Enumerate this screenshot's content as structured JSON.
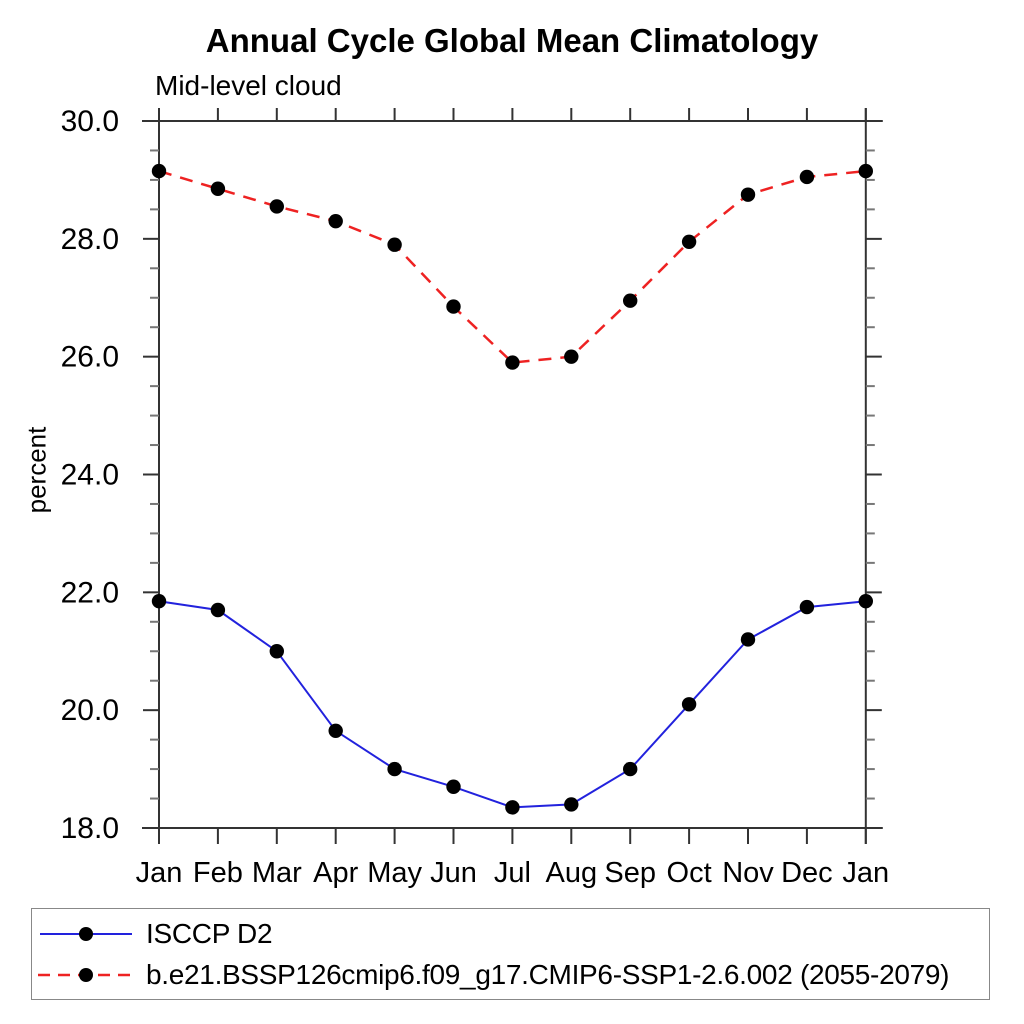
{
  "title": "Annual Cycle Global Mean Climatology",
  "subtitle": "Mid-level cloud",
  "chart_data": {
    "type": "line",
    "title": "Annual Cycle Global Mean Climatology",
    "subtitle": "Mid-level cloud",
    "ylabel": "percent",
    "categories": [
      "Jan",
      "Feb",
      "Mar",
      "Apr",
      "May",
      "Jun",
      "Jul",
      "Aug",
      "Sep",
      "Oct",
      "Nov",
      "Dec",
      "Jan"
    ],
    "ylim": [
      18.0,
      30.0
    ],
    "ytick_major_step": 2.0,
    "ytick_minor_step": 0.5,
    "ytick_label_format": "one-decimal",
    "grid": false,
    "legend_position": "bottom-left",
    "marker_color": "#000000",
    "axis_color": "#333333",
    "series": [
      {
        "name": "ISCCP D2",
        "color": "#2222dd",
        "line_style": "solid",
        "marker": "filled-circle",
        "values": [
          21.85,
          21.7,
          21.0,
          19.65,
          19.0,
          18.7,
          18.35,
          18.4,
          19.0,
          20.1,
          21.2,
          21.75,
          21.85
        ]
      },
      {
        "name": "b.e21.BSSP126cmip6.f09_g17.CMIP6-SSP1-2.6.002 (2055-2079)",
        "color": "#ee2222",
        "line_style": "dashed",
        "marker": "filled-circle",
        "values": [
          29.15,
          28.85,
          28.55,
          28.3,
          27.9,
          26.85,
          25.9,
          26.0,
          26.95,
          27.95,
          28.75,
          29.05,
          29.15
        ]
      }
    ]
  }
}
